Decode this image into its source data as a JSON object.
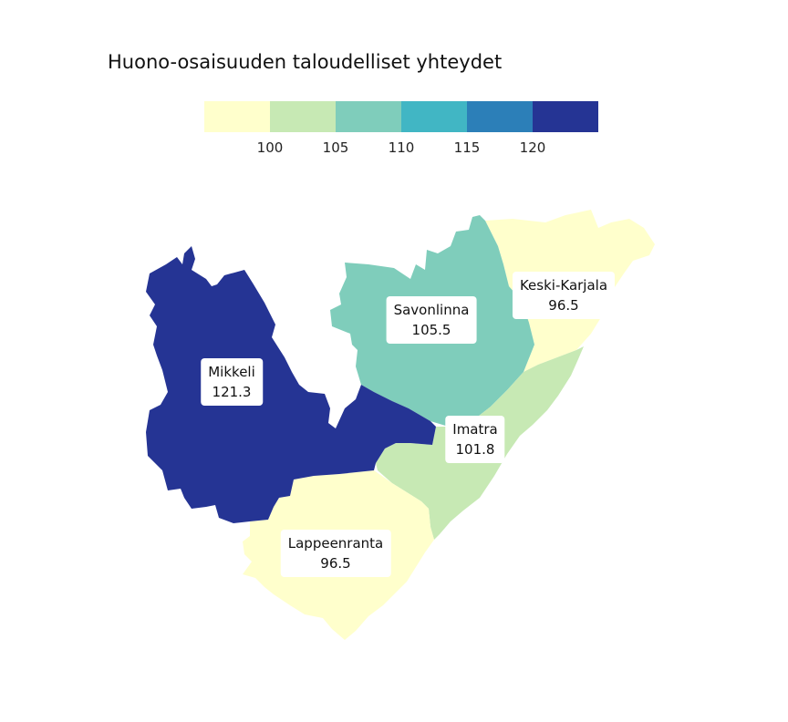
{
  "title": "Huono-osaisuuden taloudelliset yhteydet",
  "legend": {
    "colors": [
      "#ffffcc",
      "#c7e9b4",
      "#7fcdbb",
      "#41b6c4",
      "#2c7fb8",
      "#253494"
    ],
    "ticks": [
      "100",
      "105",
      "110",
      "115",
      "120"
    ]
  },
  "regions": [
    {
      "name": "Mikkeli",
      "value": "121.3",
      "color": "#253494"
    },
    {
      "name": "Savonlinna",
      "value": "105.5",
      "color": "#7fcdbb"
    },
    {
      "name": "Keski-Karjala",
      "value": "96.5",
      "color": "#ffffcc"
    },
    {
      "name": "Imatra",
      "value": "101.8",
      "color": "#c7e9b4"
    },
    {
      "name": "Lappeenranta",
      "value": "96.5",
      "color": "#ffffcc"
    }
  ]
}
